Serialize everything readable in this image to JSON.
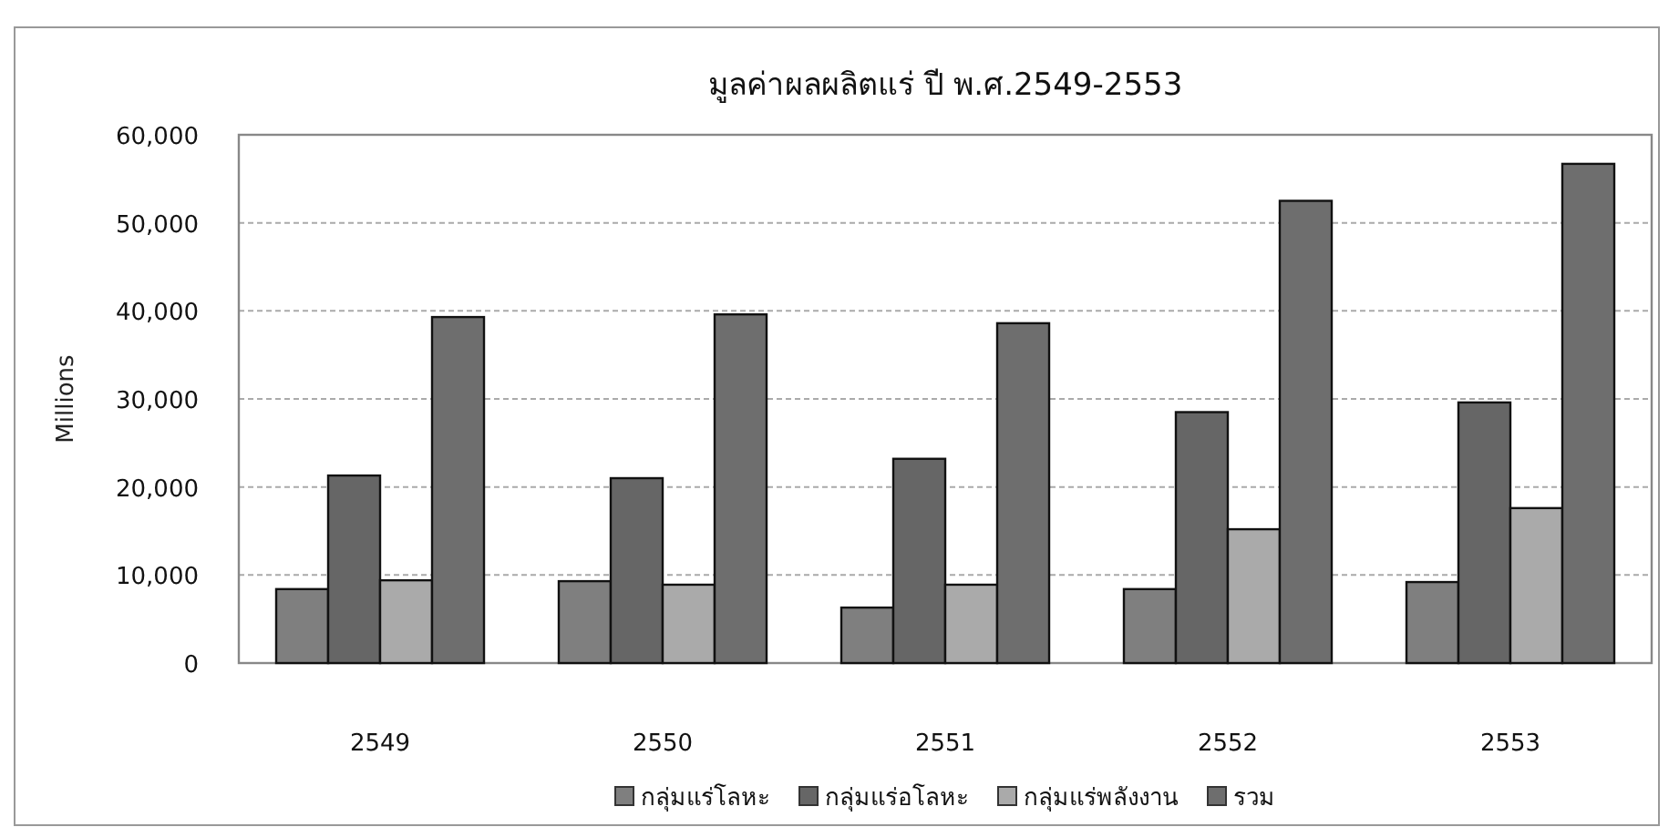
{
  "chart_data": {
    "type": "bar",
    "title": "มูลค่าผลผลิตแร่ ปี พ.ศ.2549-2553",
    "ylabel": "Millions",
    "categories": [
      "2549",
      "2550",
      "2551",
      "2552",
      "2553"
    ],
    "series": [
      {
        "name": "กลุ่มแร่โลหะ",
        "color": "#7f7f7f",
        "values": [
          8400,
          9300,
          6300,
          8400,
          9200
        ]
      },
      {
        "name": "กลุ่มแร่อโลหะ",
        "color": "#666666",
        "values": [
          21300,
          21000,
          23200,
          28500,
          29600
        ]
      },
      {
        "name": "กลุ่มแร่พลังงาน",
        "color": "#aaaaaa",
        "values": [
          9400,
          8900,
          8900,
          15200,
          17600
        ]
      },
      {
        "name": "รวม",
        "color": "#6e6e6e",
        "values": [
          39300,
          39600,
          38600,
          52500,
          56700
        ]
      }
    ],
    "ylim": [
      0,
      60000
    ],
    "yticks": [
      {
        "value": 0,
        "label": "0"
      },
      {
        "value": 10000,
        "label": "10,000"
      },
      {
        "value": 20000,
        "label": "20,000"
      },
      {
        "value": 30000,
        "label": "30,000"
      },
      {
        "value": 40000,
        "label": "40,000"
      },
      {
        "value": 50000,
        "label": "50,000"
      },
      {
        "value": 60000,
        "label": "60,000"
      }
    ],
    "grid": "y",
    "legend": "bottom"
  }
}
